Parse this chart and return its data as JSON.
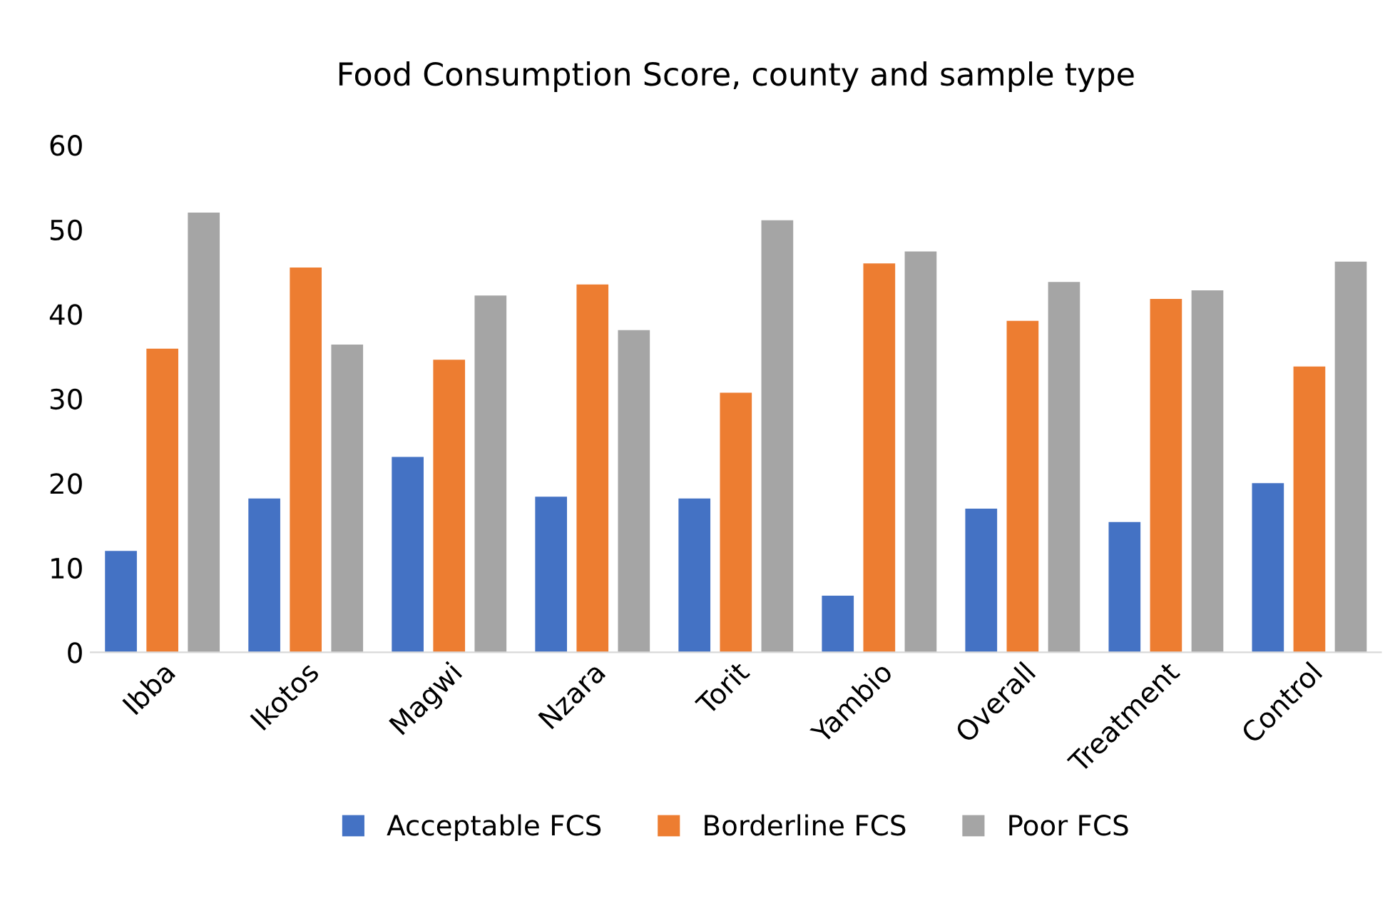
{
  "chart_data": {
    "type": "bar",
    "title": "Food Consumption Score, county and sample type",
    "categories": [
      "Ibba",
      "Ikotos",
      "Magwi",
      "Nzara",
      "Torit",
      "Yambio",
      "Overall",
      "Treatment",
      "Control"
    ],
    "series": [
      {
        "name": "Acceptable FCS",
        "color": "#4472c4",
        "values": [
          12.0,
          18.2,
          23.1,
          18.4,
          18.2,
          6.7,
          17.0,
          15.4,
          20.0
        ]
      },
      {
        "name": "Borderline FCS",
        "color": "#ed7d31",
        "values": [
          35.9,
          45.5,
          34.6,
          43.5,
          30.7,
          46.0,
          39.2,
          41.8,
          33.8
        ]
      },
      {
        "name": "Poor FCS",
        "color": "#a5a5a5",
        "values": [
          52.0,
          36.4,
          42.2,
          38.1,
          51.1,
          47.4,
          43.8,
          42.8,
          46.2
        ]
      }
    ],
    "ylim": [
      0,
      60
    ],
    "yticks": [
      0,
      10,
      20,
      30,
      40,
      50,
      60
    ],
    "grid": false,
    "legend": "bottom"
  }
}
